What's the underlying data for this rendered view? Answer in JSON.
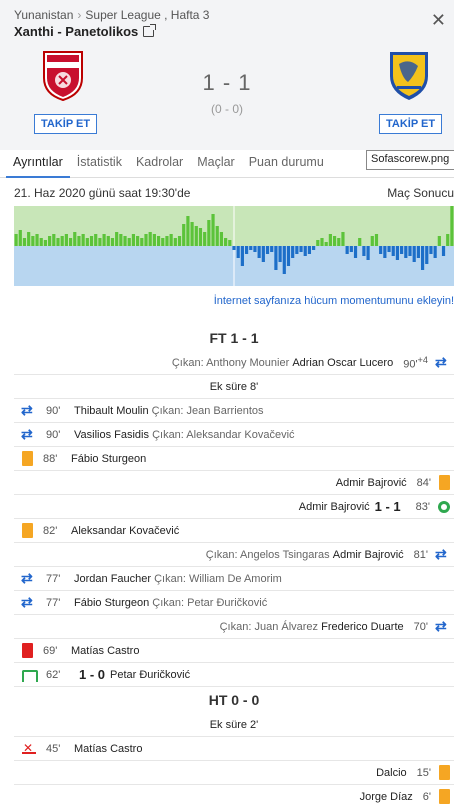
{
  "header": {
    "country": "Yunanistan",
    "league": "Super League , Hafta 3",
    "match_title": "Xanthi - Panetolikos",
    "score": "1 - 1",
    "halftime_score": "(0 - 0)",
    "follow_label": "TAKİP ET"
  },
  "tabs": [
    "Ayrıntılar",
    "İstatistik",
    "Kadrolar",
    "Maçlar",
    "Puan durumu"
  ],
  "tooltip": "Sofascorew.png",
  "info": {
    "date": "21. Haz 2020 günü saat 19:30'de",
    "result": "Maç Sonucu",
    "momentum_link": "İnternet sayfanıza hücum momentumunu ekleyin!"
  },
  "momentum": {
    "home_color": "#5cc33a",
    "away_color": "#1d6fc8",
    "home_bg": "#c8e6b8",
    "away_bg": "#b8d6f0",
    "values": [
      0.3,
      0.4,
      0.2,
      0.35,
      0.25,
      0.3,
      0.2,
      0.15,
      0.25,
      0.3,
      0.2,
      0.25,
      0.3,
      0.2,
      0.35,
      0.25,
      0.3,
      0.2,
      0.25,
      0.3,
      0.2,
      0.3,
      0.25,
      0.2,
      0.35,
      0.3,
      0.25,
      0.2,
      0.3,
      0.25,
      0.2,
      0.3,
      0.35,
      0.3,
      0.25,
      0.2,
      0.25,
      0.3,
      0.2,
      0.25,
      0.55,
      0.75,
      0.6,
      0.5,
      0.45,
      0.35,
      0.65,
      0.8,
      0.5,
      0.35,
      0.2,
      0.15,
      -0.1,
      -0.3,
      -0.5,
      -0.2,
      -0.1,
      -0.15,
      -0.3,
      -0.4,
      -0.2,
      -0.15,
      -0.6,
      -0.4,
      -0.7,
      -0.5,
      -0.3,
      -0.2,
      -0.15,
      -0.25,
      -0.2,
      -0.1,
      0.15,
      0.2,
      0.1,
      0.3,
      0.25,
      0.2,
      0.35,
      -0.2,
      -0.15,
      -0.3,
      0.2,
      -0.25,
      -0.35,
      0.25,
      0.3,
      -0.2,
      -0.3,
      -0.15,
      -0.25,
      -0.35,
      -0.2,
      -0.3,
      -0.25,
      -0.4,
      -0.3,
      -0.6,
      -0.45,
      -0.2,
      -0.3,
      0.25,
      -0.25,
      0.3,
      1.0
    ]
  },
  "events": [
    {
      "type": "title",
      "text": "FT 1 - 1"
    },
    {
      "type": "sub",
      "side": "right",
      "minute": "90'",
      "extra": "+4",
      "out_label": "Çıkan: Anthony Mounier",
      "in_name": "Adrian Oscar Lucero"
    },
    {
      "type": "info",
      "text": "Ek süre 8'"
    },
    {
      "type": "sub",
      "side": "left",
      "minute": "90'",
      "in_name": "Thibault Moulin",
      "out_label": "Çıkan: Jean Barrientos"
    },
    {
      "type": "sub",
      "side": "left",
      "minute": "90'",
      "in_name": "Vasilios Fasidis",
      "out_label": "Çıkan: Aleksandar Kovačević"
    },
    {
      "type": "yellow",
      "side": "left",
      "minute": "88'",
      "name": "Fábio Sturgeon"
    },
    {
      "type": "yellow",
      "side": "right",
      "minute": "84'",
      "name": "Admir Bajrović"
    },
    {
      "type": "goal",
      "side": "right",
      "minute": "83'",
      "name": "Admir Bajrović",
      "score": "1 - 1"
    },
    {
      "type": "yellow",
      "side": "left",
      "minute": "82'",
      "name": "Aleksandar Kovačević"
    },
    {
      "type": "sub",
      "side": "right",
      "minute": "81'",
      "out_label": "Çıkan: Angelos Tsingaras",
      "in_name": "Admir Bajrović"
    },
    {
      "type": "sub",
      "side": "left",
      "minute": "77'",
      "in_name": "Jordan Faucher",
      "out_label": "Çıkan: William De Amorim"
    },
    {
      "type": "sub",
      "side": "left",
      "minute": "77'",
      "in_name": "Fábio Sturgeon",
      "out_label": "Çıkan: Petar Đuričković"
    },
    {
      "type": "sub",
      "side": "right",
      "minute": "70'",
      "out_label": "Çıkan: Juan Álvarez",
      "in_name": "Frederico Duarte"
    },
    {
      "type": "red",
      "side": "left",
      "minute": "69'",
      "name": "Matías Castro"
    },
    {
      "type": "pengoal",
      "side": "left",
      "minute": "62'",
      "score": "1 - 0",
      "name": "Petar Đuričković"
    },
    {
      "type": "title",
      "text": "HT 0 - 0"
    },
    {
      "type": "info",
      "text": "Ek süre 2'"
    },
    {
      "type": "penmiss",
      "side": "left",
      "minute": "45'",
      "name": "Matías Castro"
    },
    {
      "type": "yellow",
      "side": "right",
      "minute": "15'",
      "name": "Dalcio"
    },
    {
      "type": "yellow",
      "side": "right",
      "minute": "6'",
      "name": "Jorge Díaz"
    }
  ]
}
